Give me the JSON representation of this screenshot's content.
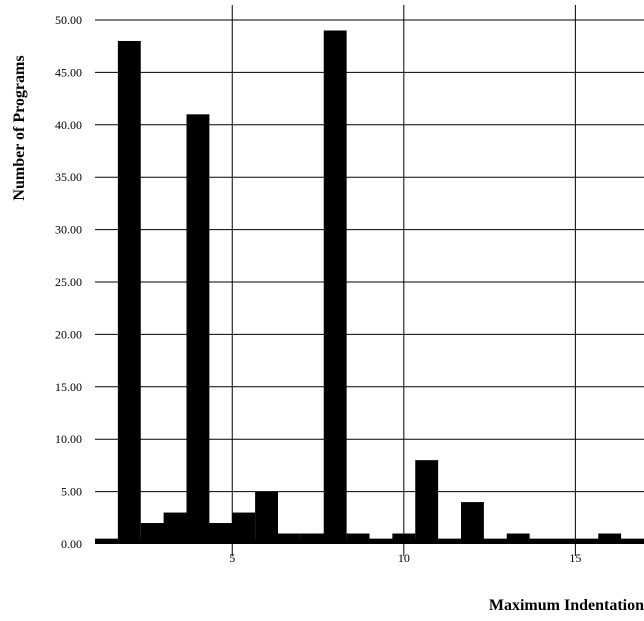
{
  "chart_data": {
    "type": "bar",
    "title": "",
    "xlabel": "Maximum Indentation",
    "ylabel": "Number of Programs",
    "xlim": [
      1,
      17.0
    ],
    "ylim": [
      0,
      50
    ],
    "x_ticks": [
      5,
      10,
      15
    ],
    "y_ticks": [
      "0.00",
      "5.00",
      "10.00",
      "15.00",
      "20.00",
      "25.00",
      "30.00",
      "35.00",
      "40.00",
      "45.00",
      "50.00"
    ],
    "grid": true,
    "bar_width": 0.667,
    "x": [
      1.333,
      2.0,
      2.667,
      3.333,
      4.0,
      4.667,
      5.333,
      6.0,
      6.667,
      7.333,
      8.0,
      8.667,
      9.333,
      10.0,
      10.667,
      11.333,
      12.0,
      12.667,
      13.333,
      14.0,
      14.667,
      15.333,
      16.0,
      16.667
    ],
    "values": [
      0.5,
      48,
      2,
      3,
      41,
      2,
      3,
      5,
      1,
      1,
      49,
      1,
      0.5,
      1,
      8,
      0.5,
      4,
      0.5,
      1,
      0.5,
      0.5,
      0.5,
      1,
      0.5
    ],
    "extra_bars": [
      {
        "x": 2.917,
        "width": 0.333,
        "value": 2
      },
      {
        "x": 3.583,
        "width": 0.333,
        "value": 1
      },
      {
        "x": 4.417,
        "width": 0.333,
        "value": 2
      },
      {
        "x": 4.917,
        "width": 0.333,
        "value": 1
      },
      {
        "x": 7.583,
        "width": 0.333,
        "value": 1
      }
    ],
    "colors": {
      "bar": "#000000",
      "grid": "#000000",
      "background": "#ffffff"
    }
  }
}
